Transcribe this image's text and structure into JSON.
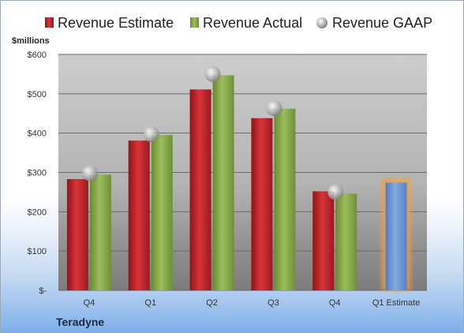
{
  "company": "Teradyne",
  "chart_data": {
    "type": "bar",
    "ylabel": "$millions",
    "ylim": [
      0,
      600
    ],
    "y_ticks": [
      0,
      100,
      200,
      300,
      400,
      500,
      600
    ],
    "y_tick_labels": [
      "$-",
      "$100",
      "$200",
      "$300",
      "$400",
      "$500",
      "$600"
    ],
    "categories": [
      "Q4",
      "Q1",
      "Q2",
      "Q3",
      "Q4",
      "Q1 Estimate"
    ],
    "series": [
      {
        "name": "Revenue Estimate",
        "type": "bar",
        "color": "#c0262b",
        "values": [
          283,
          381,
          511,
          438,
          252,
          null
        ]
      },
      {
        "name": "Revenue Actual",
        "type": "bar",
        "color": "#8aab4c",
        "values": [
          294,
          395,
          547,
          462,
          246,
          null
        ]
      },
      {
        "name": "Revenue GAAP",
        "type": "marker",
        "color": "#b8b8b8",
        "values": [
          298,
          397,
          550,
          463,
          250,
          null
        ]
      },
      {
        "name": "Q1 Estimate",
        "type": "bar",
        "color": "#6f9ad6",
        "highlight": "#f0a040",
        "values": [
          null,
          null,
          null,
          null,
          null,
          274
        ]
      }
    ],
    "legend": "top",
    "grid": true
  }
}
